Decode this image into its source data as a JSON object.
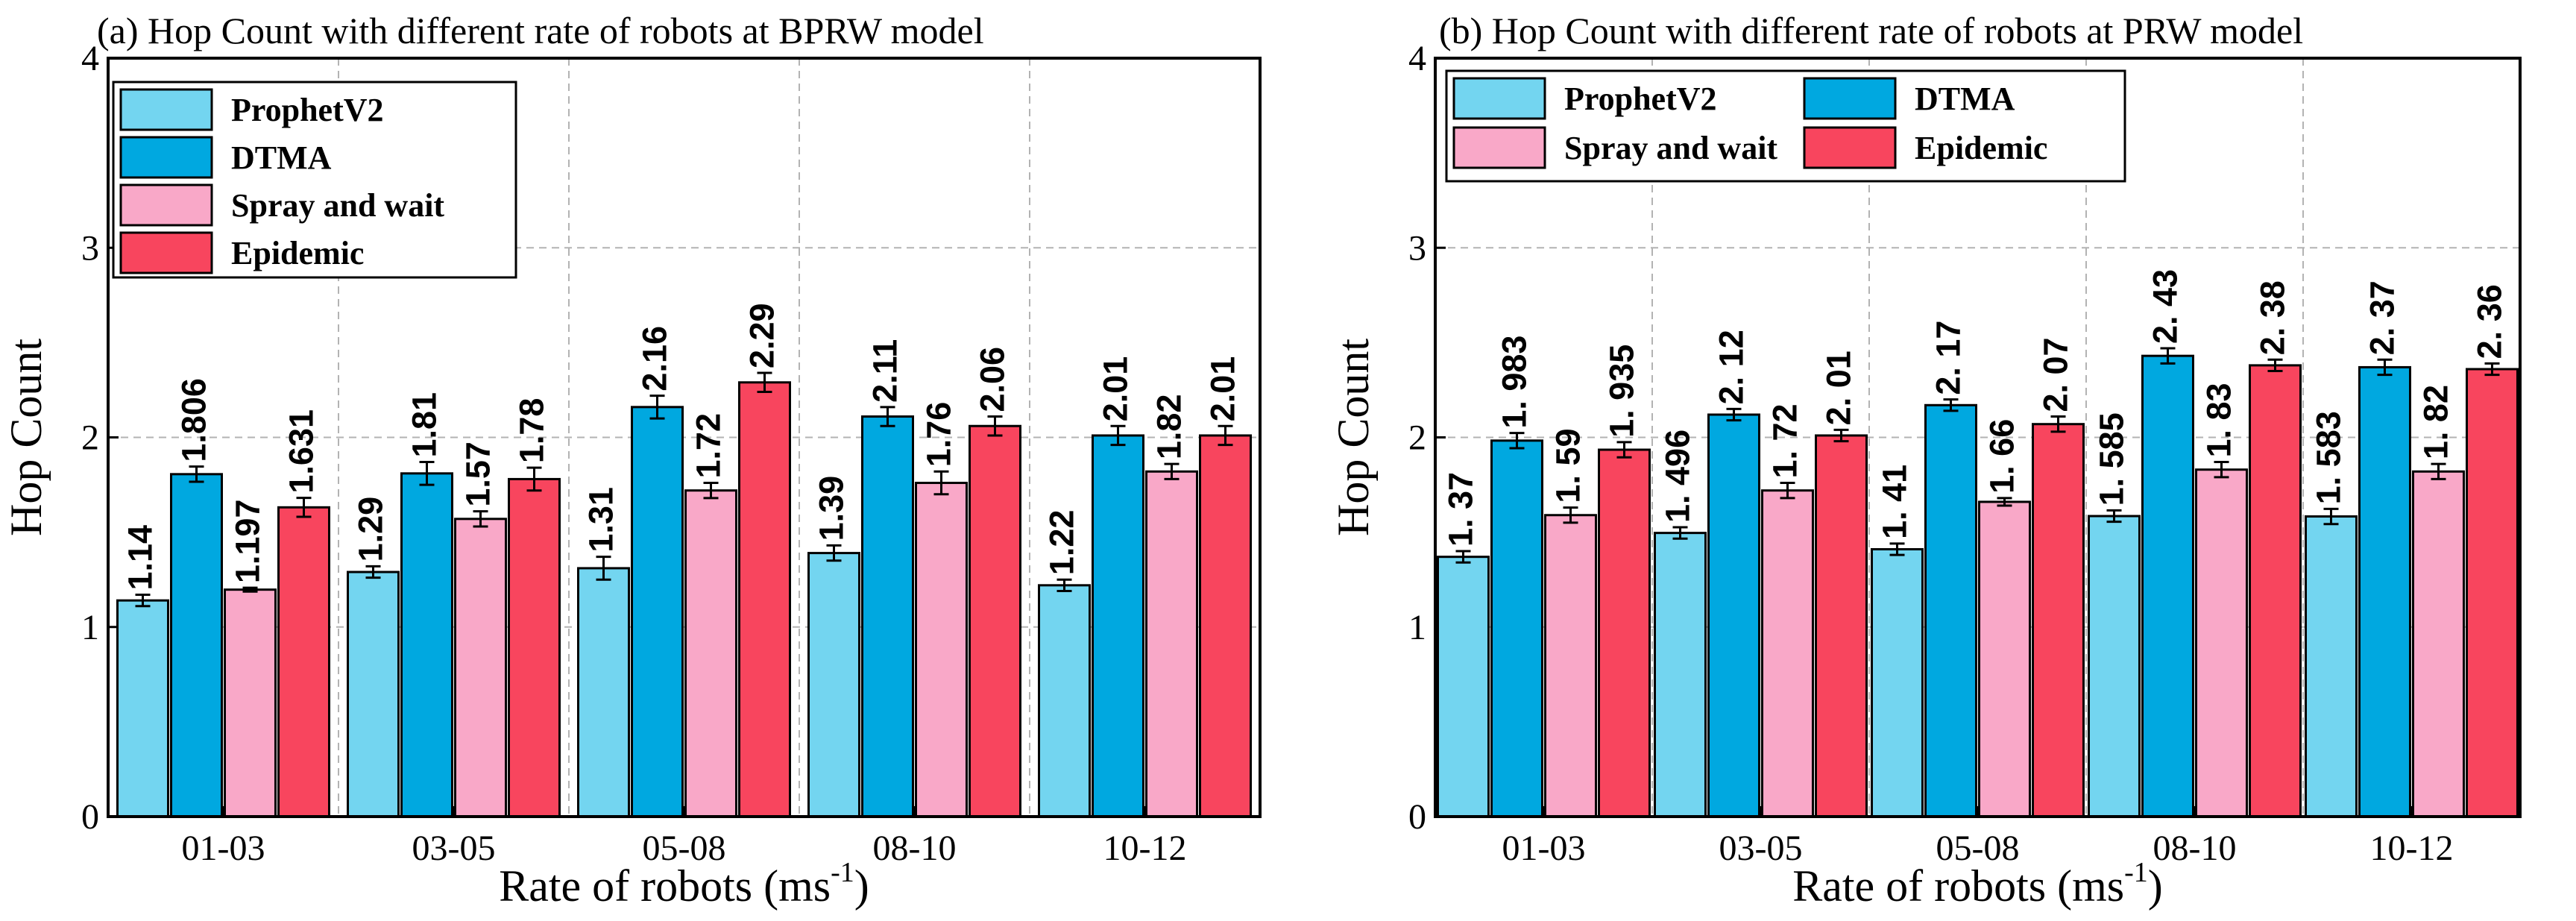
{
  "chart_data": [
    {
      "type": "bar",
      "title": "(a) Hop Count with different rate of robots at BPRW model",
      "xlabel": "Rate of robots (ms",
      "xlabel_sup": "-1",
      "xlabel_end": ")",
      "ylabel": "Hop Count",
      "ylim": [
        0,
        4
      ],
      "yticks": [
        "0",
        "1",
        "2",
        "3",
        "4"
      ],
      "grid": true,
      "legend_position": "top-left",
      "categories": [
        "01-03",
        "03-05",
        "05-08",
        "08-10",
        "10-12"
      ],
      "series": [
        {
          "name": "ProphetV2",
          "color": "#73d5f0",
          "values": [
            1.14,
            1.29,
            1.31,
            1.39,
            1.22
          ],
          "errors": [
            0.03,
            0.03,
            0.06,
            0.04,
            0.03
          ],
          "labels": [
            "1.14",
            "1.29",
            "1.31",
            "1.39",
            "1.22"
          ]
        },
        {
          "name": "DTMA",
          "color": "#00a8e0",
          "values": [
            1.806,
            1.81,
            2.16,
            2.11,
            2.01
          ],
          "errors": [
            0.04,
            0.06,
            0.06,
            0.05,
            0.05
          ],
          "labels": [
            "1.806",
            "1.81",
            "2.16",
            "2.11",
            "2.01"
          ]
        },
        {
          "name": "Spray and wait",
          "color": "#f9a8c8",
          "values": [
            1.197,
            1.57,
            1.72,
            1.76,
            1.82
          ],
          "errors": [
            0.01,
            0.04,
            0.04,
            0.06,
            0.04
          ],
          "labels": [
            "1.197",
            "1.57",
            "1.72",
            "1.76",
            "1.82"
          ]
        },
        {
          "name": "Epidemic",
          "color": "#f8455e",
          "values": [
            1.631,
            1.78,
            2.29,
            2.06,
            2.01
          ],
          "errors": [
            0.05,
            0.06,
            0.05,
            0.05,
            0.05
          ],
          "labels": [
            "1.631",
            "1.78",
            "2.29",
            "2.06",
            "2.01"
          ]
        }
      ]
    },
    {
      "type": "bar",
      "title": "(b) Hop Count with different rate of robots at PRW model",
      "xlabel": "Rate of robots (ms",
      "xlabel_sup": "-1",
      "xlabel_end": ")",
      "ylabel": "Hop Count",
      "ylim": [
        0,
        4
      ],
      "yticks": [
        "0",
        "1",
        "2",
        "3",
        "4"
      ],
      "grid": true,
      "legend_position": "top-left",
      "categories": [
        "01-03",
        "03-05",
        "05-08",
        "08-10",
        "10-12"
      ],
      "series": [
        {
          "name": "ProphetV2",
          "color": "#73d5f0",
          "values": [
            1.37,
            1.496,
            1.41,
            1.585,
            1.583
          ],
          "errors": [
            0.03,
            0.03,
            0.03,
            0.03,
            0.04
          ],
          "labels": [
            "1. 37",
            "1. 496",
            "1. 41",
            "1. 585",
            "1. 583"
          ]
        },
        {
          "name": "DTMA",
          "color": "#00a8e0",
          "values": [
            1.983,
            2.12,
            2.17,
            2.43,
            2.37
          ],
          "errors": [
            0.04,
            0.03,
            0.03,
            0.04,
            0.04
          ],
          "labels": [
            "1. 983",
            "2. 12",
            "2. 17",
            "2. 43",
            "2. 37"
          ]
        },
        {
          "name": "Spray and wait",
          "color": "#f9a8c8",
          "values": [
            1.59,
            1.72,
            1.66,
            1.83,
            1.82
          ],
          "errors": [
            0.04,
            0.04,
            0.02,
            0.04,
            0.04
          ],
          "labels": [
            "1. 59",
            "1. 72",
            "1. 66",
            "1. 83",
            "1. 82"
          ]
        },
        {
          "name": "Epidemic",
          "color": "#f8455e",
          "values": [
            1.935,
            2.01,
            2.07,
            2.38,
            2.36
          ],
          "errors": [
            0.04,
            0.03,
            0.04,
            0.03,
            0.03
          ],
          "labels": [
            "1. 935",
            "2. 01",
            "2. 07",
            "2. 38",
            "2. 36"
          ]
        }
      ]
    }
  ]
}
